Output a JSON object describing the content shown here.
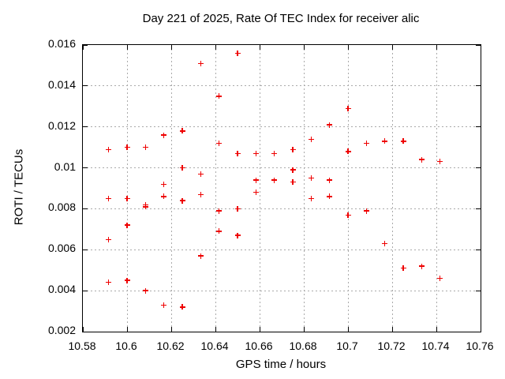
{
  "title": "Day 221 of 2025, Rate Of TEC Index for receiver alic",
  "colors": {
    "marker": "#ee0000",
    "grid": "#aaaaaa",
    "border": "#000000",
    "background": "#ffffff",
    "text": "#000000"
  },
  "chart_data": {
    "type": "scatter",
    "title": "Day 221 of 2025, Rate Of TEC Index for receiver alic",
    "xlabel": "GPS time / hours",
    "ylabel": "ROTI / TECUs",
    "xlim": [
      10.58,
      10.76
    ],
    "ylim": [
      0.002,
      0.016
    ],
    "xticks": [
      10.58,
      10.6,
      10.62,
      10.64,
      10.66,
      10.68,
      10.7,
      10.72,
      10.74,
      10.76
    ],
    "xtick_labels": [
      "10.58",
      "10.6",
      "10.62",
      "10.64",
      "10.66",
      "10.68",
      "10.7",
      "10.72",
      "10.74",
      "10.76"
    ],
    "yticks": [
      0.002,
      0.004,
      0.006,
      0.008,
      0.01,
      0.012,
      0.014,
      0.016
    ],
    "ytick_labels": [
      "0.002",
      "0.004",
      "0.006",
      "0.008",
      "0.01",
      "0.012",
      "0.014",
      "0.016"
    ],
    "grid": true,
    "legend": "none",
    "marker": "plus",
    "points": [
      [
        10.5917,
        0.0109
      ],
      [
        10.5917,
        0.0085
      ],
      [
        10.5917,
        0.0065
      ],
      [
        10.5917,
        0.0044
      ],
      [
        10.6,
        0.011
      ],
      [
        10.6,
        0.0085
      ],
      [
        10.6,
        0.0072
      ],
      [
        10.6,
        0.0045
      ],
      [
        10.6083,
        0.011
      ],
      [
        10.6083,
        0.0082
      ],
      [
        10.6083,
        0.0081
      ],
      [
        10.6083,
        0.004
      ],
      [
        10.6167,
        0.0116
      ],
      [
        10.6167,
        0.0092
      ],
      [
        10.6167,
        0.0086
      ],
      [
        10.6167,
        0.0033
      ],
      [
        10.625,
        0.0118
      ],
      [
        10.625,
        0.01
      ],
      [
        10.625,
        0.0084
      ],
      [
        10.625,
        0.0032
      ],
      [
        10.6333,
        0.0151
      ],
      [
        10.6333,
        0.0097
      ],
      [
        10.6333,
        0.0087
      ],
      [
        10.6333,
        0.0057
      ],
      [
        10.6417,
        0.0135
      ],
      [
        10.6417,
        0.0112
      ],
      [
        10.6417,
        0.0079
      ],
      [
        10.6417,
        0.0069
      ],
      [
        10.65,
        0.0156
      ],
      [
        10.65,
        0.0107
      ],
      [
        10.65,
        0.008
      ],
      [
        10.65,
        0.0067
      ],
      [
        10.6583,
        0.0107
      ],
      [
        10.6583,
        0.0094
      ],
      [
        10.6583,
        0.0088
      ],
      [
        10.6667,
        0.0107
      ],
      [
        10.6667,
        0.0094
      ],
      [
        10.675,
        0.0109
      ],
      [
        10.675,
        0.0099
      ],
      [
        10.675,
        0.0093
      ],
      [
        10.6833,
        0.0114
      ],
      [
        10.6833,
        0.0095
      ],
      [
        10.6833,
        0.0085
      ],
      [
        10.6917,
        0.0121
      ],
      [
        10.6917,
        0.0094
      ],
      [
        10.6917,
        0.0086
      ],
      [
        10.7,
        0.0129
      ],
      [
        10.7,
        0.0108
      ],
      [
        10.7,
        0.0077
      ],
      [
        10.7083,
        0.0112
      ],
      [
        10.7083,
        0.0079
      ],
      [
        10.7167,
        0.0113
      ],
      [
        10.7167,
        0.0063
      ],
      [
        10.725,
        0.0113
      ],
      [
        10.725,
        0.0051
      ],
      [
        10.7333,
        0.0104
      ],
      [
        10.7333,
        0.0052
      ],
      [
        10.7417,
        0.0103
      ],
      [
        10.7417,
        0.0046
      ]
    ]
  }
}
